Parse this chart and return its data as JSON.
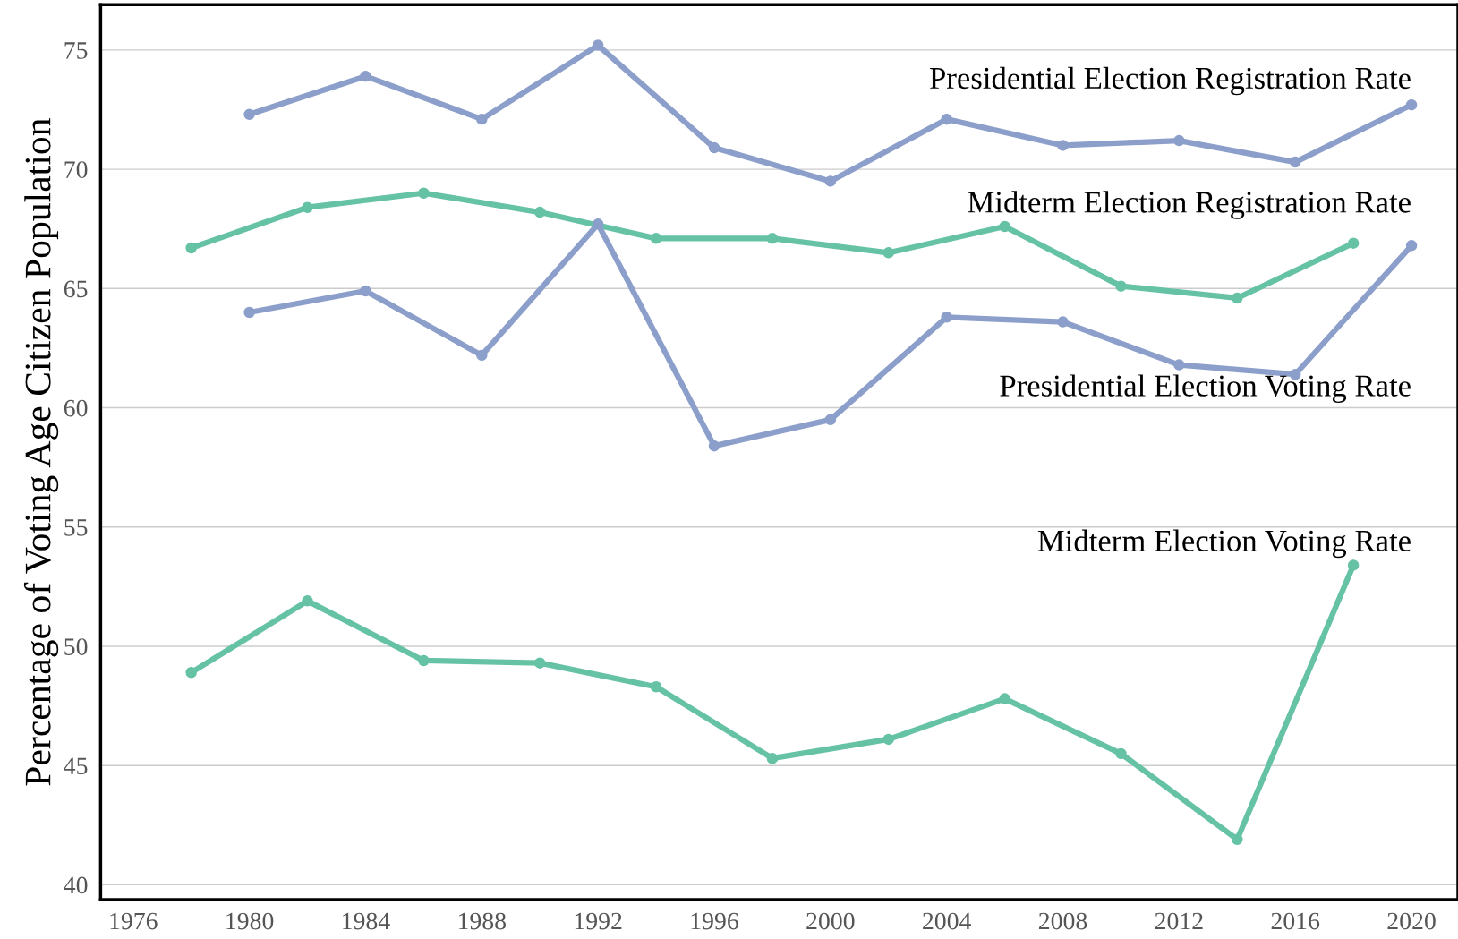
{
  "chart_data": {
    "type": "line",
    "ylabel": "Percentage of Voting Age Citizen Population",
    "xlim": [
      1974.88,
      2021.6
    ],
    "ylim": [
      39.38,
      76.9
    ],
    "xticks": [
      1976,
      1980,
      1984,
      1988,
      1992,
      1996,
      2000,
      2004,
      2008,
      2012,
      2016,
      2020
    ],
    "yticks": [
      40,
      45,
      50,
      55,
      60,
      65,
      70,
      75
    ],
    "grid": "y",
    "marker": "circle",
    "line_style": "solid",
    "series": [
      {
        "name": "Presidential Election Registration Rate",
        "color": "#8c9fcb",
        "x": [
          1980,
          1984,
          1988,
          1992,
          1996,
          2000,
          2004,
          2008,
          2012,
          2016,
          2020
        ],
        "values": [
          72.3,
          73.9,
          72.1,
          75.2,
          70.9,
          69.5,
          72.1,
          71.0,
          71.2,
          70.3,
          72.7
        ]
      },
      {
        "name": "Midterm Election Registration Rate",
        "color": "#66c2a5",
        "x": [
          1978,
          1982,
          1986,
          1990,
          1994,
          1998,
          2002,
          2006,
          2010,
          2014,
          2018
        ],
        "values": [
          66.7,
          68.4,
          69.0,
          68.2,
          67.1,
          67.1,
          66.5,
          67.6,
          65.1,
          64.6,
          66.9
        ]
      },
      {
        "name": "Presidential Election Voting Rate",
        "color": "#8c9fcb",
        "x": [
          1980,
          1984,
          1988,
          1992,
          1996,
          2000,
          2004,
          2008,
          2012,
          2016,
          2020
        ],
        "values": [
          64.0,
          64.9,
          62.2,
          67.7,
          58.4,
          59.5,
          63.8,
          63.6,
          61.8,
          61.4,
          66.8
        ]
      },
      {
        "name": "Midterm Election Voting Rate",
        "color": "#66c2a5",
        "x": [
          1978,
          1982,
          1986,
          1990,
          1994,
          1998,
          2002,
          2006,
          2010,
          2014,
          2018
        ],
        "values": [
          48.9,
          51.9,
          49.4,
          49.3,
          48.3,
          45.3,
          46.1,
          47.8,
          45.5,
          41.9,
          53.4
        ]
      }
    ]
  }
}
